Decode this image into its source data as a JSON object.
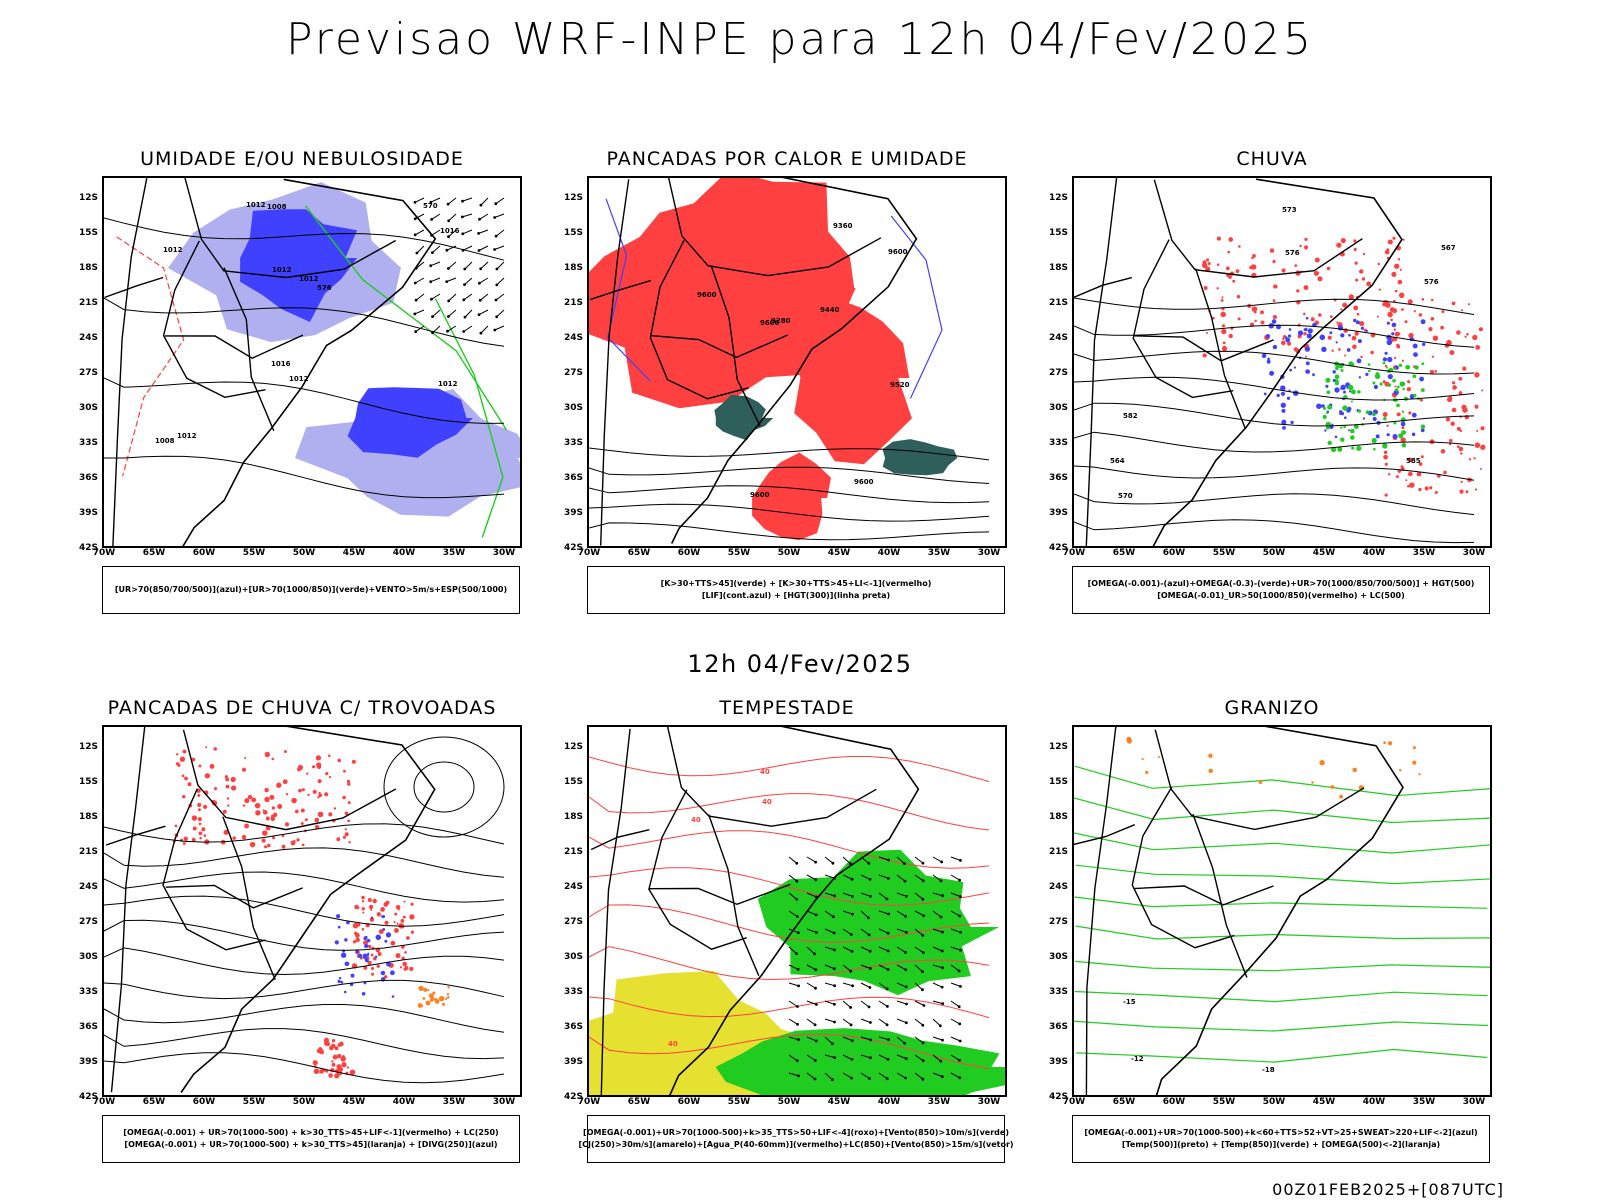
{
  "header": {
    "title": "Previsao WRF-INPE  para 12h 04/Fev/2025"
  },
  "middle": {
    "title": "12h 04/Fev/2025"
  },
  "footer": {
    "stamp": "00Z01FEB2025+[087UTC]"
  },
  "axes": {
    "lat": [
      "12S",
      "15S",
      "18S",
      "21S",
      "24S",
      "27S",
      "30S",
      "33S",
      "36S",
      "39S",
      "42S"
    ],
    "lon": [
      "70W",
      "65W",
      "60W",
      "55W",
      "50W",
      "45W",
      "40W",
      "35W",
      "30W"
    ]
  },
  "colors": {
    "red": "#ff4040",
    "blue": "#4040ff",
    "green": "#20cc20",
    "lavender": "#b0b0f0",
    "yellow": "#e6e030",
    "darkgreen": "#2f5f5a",
    "orange": "#ff8020"
  },
  "panels": [
    {
      "title": "UMIDADE E/OU NEBULOSIDADE",
      "legend": [
        "[UR>70(850/700/500)](azul)+[UR>70(1000/850)](verde)+VENTO>5m/s+ESP(500/1000)"
      ],
      "labels": [
        "1012",
        "1012",
        "1012",
        "1016",
        "1012",
        "1008",
        "1012",
        "1016",
        "1012",
        "1008",
        "1012",
        "570",
        "576"
      ]
    },
    {
      "title": "PANCADAS POR CALOR E UMIDADE",
      "legend": [
        "[K>30+TTS>45](verde) + [K>30+TTS>45+LI<-1](vermelho)",
        "[LIF](cont.azul) + [HGT(300)](linha preta)"
      ],
      "labels": [
        "9600",
        "9600",
        "9600",
        "9600",
        "9600",
        "9520",
        "9440",
        "9360",
        "9280"
      ]
    },
    {
      "title": "CHUVA",
      "legend": [
        "[OMEGA(-0.001)-(azul)+OMEGA(-0.3)-(verde)+UR>70(1000/850/700/500)] + HGT(500)",
        "[OMEGA(-0.01)_UR>50(1000/850)(vermelho) + LC(500)"
      ],
      "labels": [
        "576",
        "573",
        "570",
        "567",
        "564",
        "576",
        "585",
        "582"
      ]
    },
    {
      "title": "PANCADAS DE CHUVA C/ TROVOADAS",
      "legend": [
        "[OMEGA(-0.001) + UR>70(1000-500) + k>30_TTS>45+LIF<-1](vermelho) + LC(250)",
        "[OMEGA(-0.001) + UR>70(1000-500) + k>30_TTS>45](laranja) + [DIVG(250)](azul)"
      ],
      "labels": []
    },
    {
      "title": "TEMPESTADE",
      "legend": [
        "[OMEGA(-0.001)+UR>70(1000-500)+k>35_TTS>50+LIF<-4](roxo)+[Vento(850)>10m/s](verde)",
        "[CJ(250)>30m/s](amarelo)+[Agua_P(40-60mm)](vermelho)+LC(850)+[Vento(850)>15m/s](vetor)"
      ],
      "labels": [
        "40",
        "40",
        "40",
        "40"
      ]
    },
    {
      "title": "GRANIZO",
      "legend": [
        "[OMEGA(-0.001)+UR>70(1000-500)+k<60+TTS>52+VT>25+SWEAT>220+LIF<-2](azul)",
        "[Temp(500)](preto) + [Temp(850)](verde) + [OMEGA(500)<-2](laranja)"
      ],
      "labels": [
        "-12",
        "-15",
        "-18"
      ]
    }
  ]
}
